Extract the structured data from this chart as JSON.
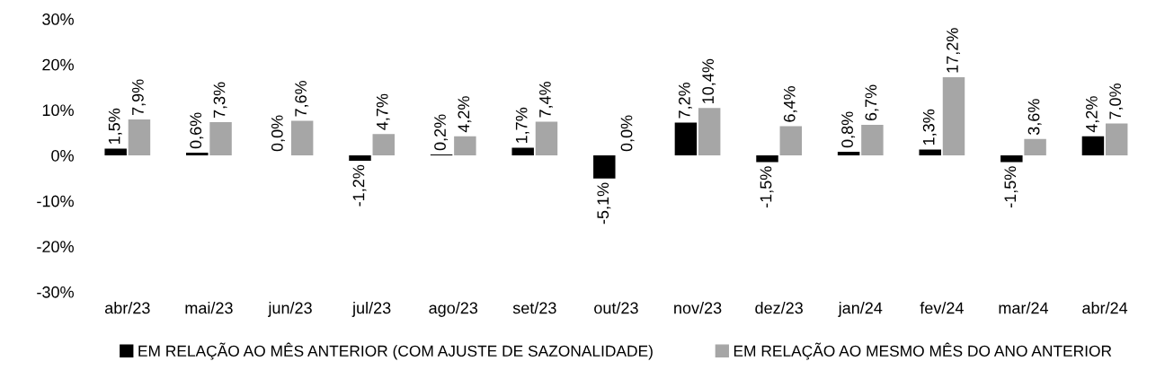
{
  "chart_data": {
    "type": "bar",
    "categories": [
      "abr/23",
      "mai/23",
      "jun/23",
      "jul/23",
      "ago/23",
      "set/23",
      "out/23",
      "nov/23",
      "dez/23",
      "jan/24",
      "fev/24",
      "mar/24",
      "abr/24"
    ],
    "series": [
      {
        "name": "EM RELAÇÃO AO MÊS ANTERIOR (COM AJUSTE DE SAZONALIDADE)",
        "color": "#000000",
        "values": [
          1.5,
          0.6,
          0.0,
          -1.2,
          0.2,
          1.7,
          -5.1,
          7.2,
          -1.5,
          0.8,
          1.3,
          -1.5,
          4.2
        ],
        "value_labels": [
          "1,5%",
          "0,6%",
          "0,0%",
          "-1,2%",
          "0,2%",
          "1,7%",
          "-5,1%",
          "7,2%",
          "-1,5%",
          "0,8%",
          "1,3%",
          "-1,5%",
          "4,2%"
        ]
      },
      {
        "name": "EM RELAÇÃO AO MESMO MÊS DO ANO ANTERIOR",
        "color": "#a6a6a6",
        "values": [
          7.9,
          7.3,
          7.6,
          4.7,
          4.2,
          7.4,
          0.0,
          10.4,
          6.4,
          6.7,
          17.2,
          3.6,
          7.0
        ],
        "value_labels": [
          "7,9%",
          "7,3%",
          "7,6%",
          "4,7%",
          "4,2%",
          "7,4%",
          "0,0%",
          "10,4%",
          "6,4%",
          "6,7%",
          "17,2%",
          "3,6%",
          "7,0%"
        ]
      }
    ],
    "ylim": [
      -30,
      30
    ],
    "yticks": [
      {
        "value": -30,
        "label": "-30%"
      },
      {
        "value": -20,
        "label": "-20%"
      },
      {
        "value": -10,
        "label": "-10%"
      },
      {
        "value": 0,
        "label": "0%"
      },
      {
        "value": 10,
        "label": "10%"
      },
      {
        "value": 20,
        "label": "20%"
      },
      {
        "value": 30,
        "label": "30%"
      }
    ],
    "legend": "bottom"
  }
}
